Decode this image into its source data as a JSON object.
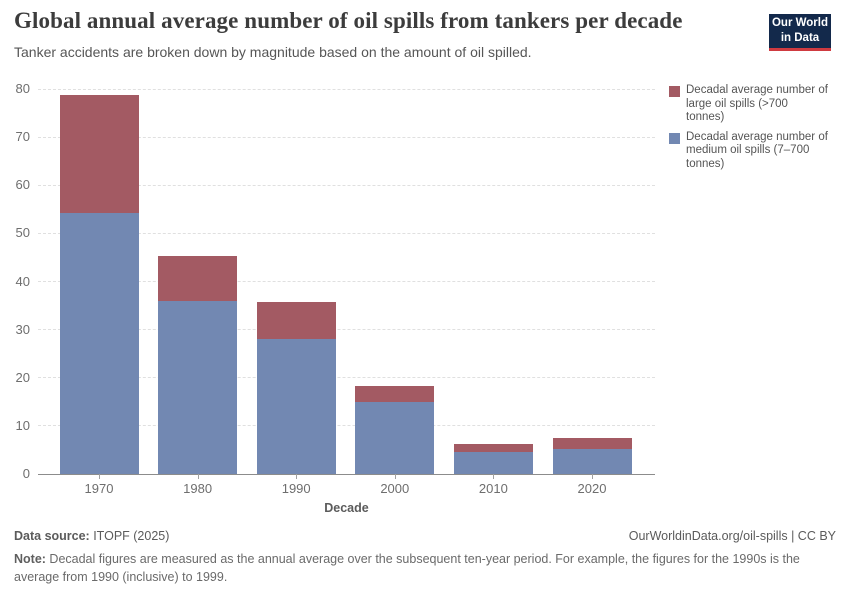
{
  "header": {
    "title": "Global annual average number of oil spills from tankers per decade",
    "subtitle": "Tanker accidents are broken down by magnitude based on the amount of oil spilled.",
    "logo_line1": "Our World",
    "logo_line2": "in Data"
  },
  "legend": {
    "items": [
      {
        "label": "Decadal average number of large oil spills (>700 tonnes)",
        "lines": [
          "Decadal average number of",
          "large oil spills (>700",
          "tonnes)"
        ],
        "color": "#a35a63"
      },
      {
        "label": "Decadal average number of medium oil spills (7–700 tonnes)",
        "lines": [
          "Decadal average number of",
          "medium oil spills (7–700",
          "tonnes)"
        ],
        "color": "#7288b2"
      }
    ]
  },
  "chart_data": {
    "type": "bar",
    "stacked": true,
    "title": "Global annual average number of oil spills from tankers per decade",
    "xlabel": "Decade",
    "ylabel": "",
    "ylim": [
      0,
      80
    ],
    "yticks": [
      0,
      10,
      20,
      30,
      40,
      50,
      60,
      70,
      80
    ],
    "grid": "horizontal-dashed",
    "legend_position": "right",
    "categories": [
      "1970",
      "1980",
      "1990",
      "2000",
      "2010",
      "2020"
    ],
    "series": [
      {
        "name": "Decadal average number of large oil spills (>700 tonnes)",
        "color": "#a35a63",
        "stack_order": "top",
        "values": [
          24.5,
          9.4,
          7.7,
          3.2,
          1.8,
          2.2
        ]
      },
      {
        "name": "Decadal average number of medium oil spills (7–700 tonnes)",
        "color": "#7288b2",
        "stack_order": "bottom",
        "values": [
          54.3,
          35.9,
          28.1,
          15.0,
          4.5,
          5.2
        ]
      }
    ],
    "totals": [
      78.8,
      45.3,
      35.8,
      18.2,
      6.3,
      7.4
    ]
  },
  "footer": {
    "data_source_label": "Data source:",
    "data_source_value": " ITOPF (2025)",
    "link": "OurWorldinData.org/oil-spills | CC BY",
    "note_label": "Note:",
    "note_text": " Decadal figures are measured as the annual average over the subsequent ten-year period. For example, the figures for the 1990s is the average from 1990 (inclusive) to 1999."
  },
  "colors": {
    "large_spills": "#a35a63",
    "medium_spills": "#7288b2",
    "logo_navy": "#13294b",
    "logo_red": "#cf3a40",
    "gridline": "#e0e0e0",
    "axis_line": "#8c8c8c"
  }
}
